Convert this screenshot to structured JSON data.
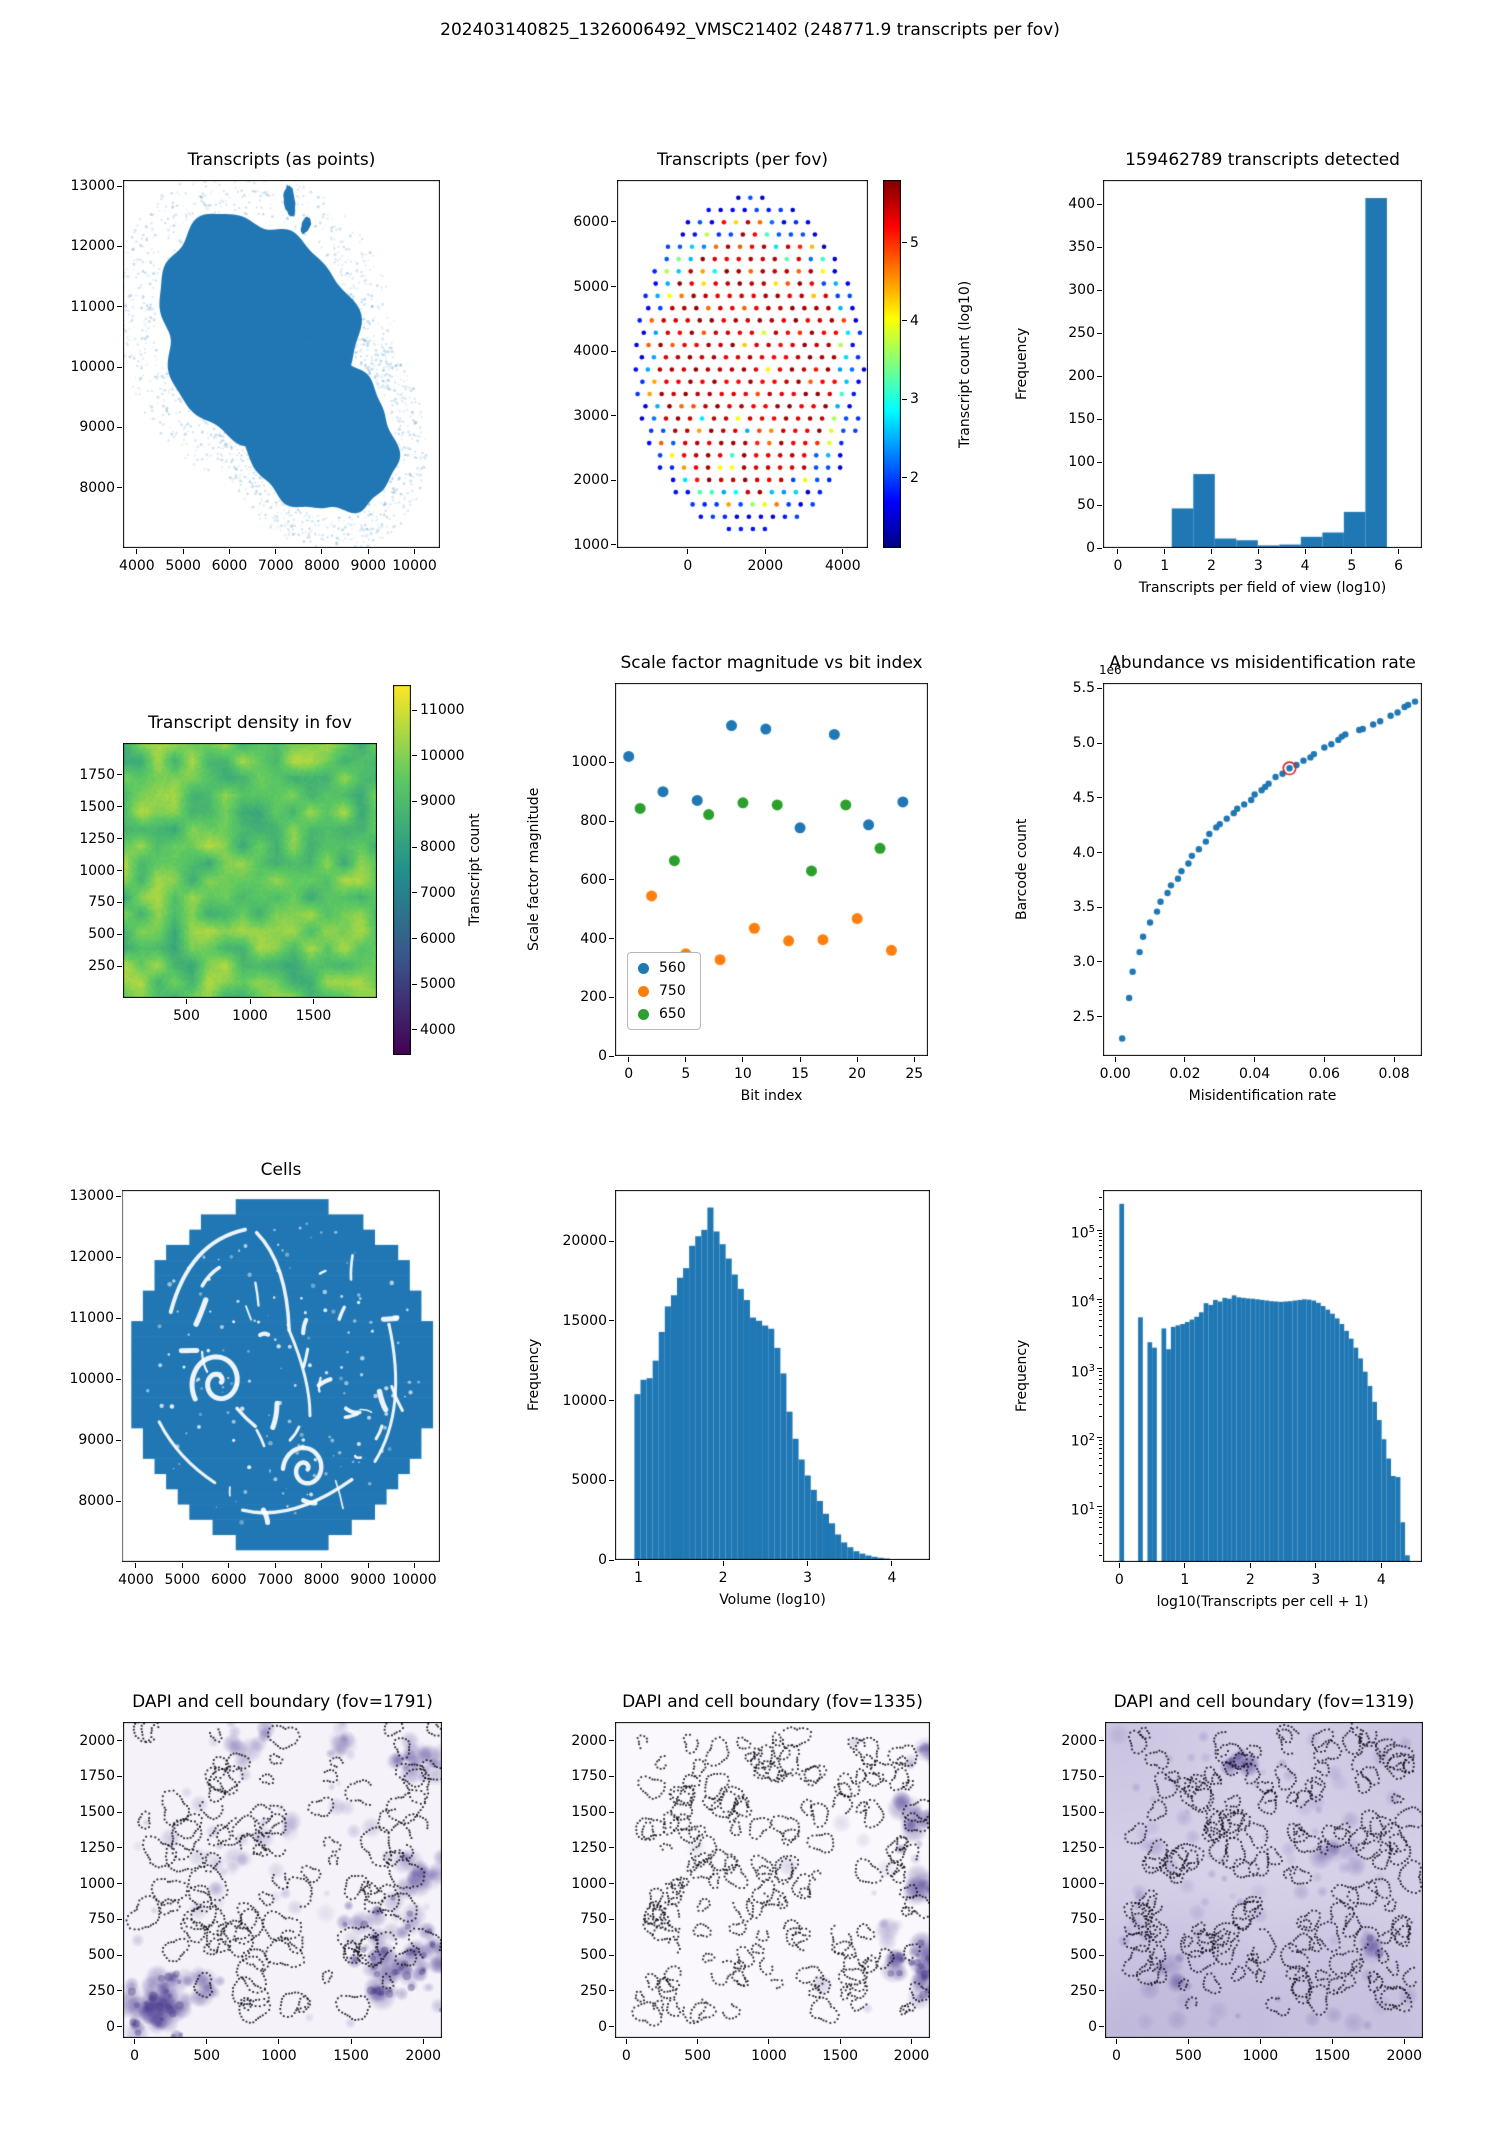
{
  "figure": {
    "title": "202403140825_1326006492_VMSC21402 (248771.9 transcripts per fov)",
    "background": "#ffffff",
    "accent_blue": "#1f77b4",
    "text_color": "#000000"
  },
  "chart_data": [
    {
      "id": "transcripts-as-points",
      "type": "tissue_scatter",
      "title": "Transcripts (as points)",
      "axes": {
        "l": 123,
        "t": 180,
        "r": 440,
        "b": 548
      },
      "xlim": [
        3700,
        10550
      ],
      "ylim": [
        7000,
        13100
      ],
      "xticks": [
        4000,
        5000,
        6000,
        7000,
        8000,
        9000,
        10000
      ],
      "yticks": [
        8000,
        9000,
        10000,
        11000,
        12000,
        13000
      ],
      "dot_color": "#2077b4",
      "halo_color": "#1f77b4",
      "seed": 7,
      "lobes": [
        {
          "cx": 6550,
          "cy": 10650,
          "rx": 2150,
          "ry": 1800,
          "rot": -20
        },
        {
          "cx": 7950,
          "cy": 8950,
          "rx": 1650,
          "ry": 1350,
          "rot": -25
        }
      ],
      "islets": [
        {
          "cx": 7300,
          "cy": 12750,
          "rx": 120,
          "ry": 260,
          "rot": 10
        },
        {
          "cx": 7650,
          "cy": 12350,
          "rx": 90,
          "ry": 150,
          "rot": -30
        }
      ]
    },
    {
      "id": "transcripts-per-fov",
      "type": "fov_dots",
      "title": "Transcripts (per fov)",
      "axes": {
        "l": 617,
        "t": 180,
        "r": 868,
        "b": 548
      },
      "xlim": [
        -1830,
        4650
      ],
      "ylim": [
        950,
        6650
      ],
      "xticks": [
        0,
        2000,
        4000
      ],
      "yticks": [
        1000,
        2000,
        3000,
        4000,
        5000,
        6000
      ],
      "grid": {
        "cx": 1560,
        "cy": 3800,
        "rx": 3060,
        "ry": 2650,
        "xstep": 310,
        "ystep": 190
      },
      "seed": 11,
      "colorbar": {
        "l": 883,
        "t": 180,
        "r": 901,
        "b": 548,
        "label": "Transcript count (log10)",
        "ticks": [
          2,
          3,
          4,
          5
        ],
        "vmin": 1.1,
        "vmax": 5.8,
        "cmap": "jet"
      }
    },
    {
      "id": "transcripts-detected-hist",
      "type": "histogram",
      "title": "159462789 transcripts detected",
      "xlabel": "Transcripts per field of view (log10)",
      "ylabel": "Frequency",
      "axes": {
        "l": 1103,
        "t": 180,
        "r": 1422,
        "b": 548
      },
      "xlim": [
        -0.32,
        6.5
      ],
      "ylim": [
        0,
        428
      ],
      "xticks": [
        0,
        1,
        2,
        3,
        4,
        5,
        6
      ],
      "yticks": [
        0,
        50,
        100,
        150,
        200,
        250,
        300,
        350,
        400
      ],
      "bins": {
        "start": 1.15,
        "width": 0.46,
        "values": [
          46,
          86,
          11,
          9,
          3,
          4,
          13,
          18,
          42,
          407
        ]
      },
      "color": "#1f77b4"
    },
    {
      "id": "transcript-density",
      "type": "heatmap",
      "title": "Transcript density in fov",
      "axes": {
        "l": 123,
        "t": 743,
        "r": 377,
        "b": 998
      },
      "xlim": [
        0,
        2000
      ],
      "ylim": [
        0,
        2000
      ],
      "xticks": [
        500,
        1000,
        1500
      ],
      "yticks": [
        250,
        500,
        750,
        1000,
        1250,
        1500,
        1750
      ],
      "value_range": [
        8300,
        10700
      ],
      "seed": 23,
      "colorbar": {
        "l": 393,
        "t": 685,
        "r": 411,
        "b": 1055,
        "label": "Transcript count",
        "ticks": [
          4000,
          5000,
          6000,
          7000,
          8000,
          9000,
          10000,
          11000
        ],
        "vmin": 3450,
        "vmax": 11550,
        "cmap": "viridis"
      }
    },
    {
      "id": "scale-factor",
      "type": "scatter_categories",
      "title": "Scale factor magnitude vs bit index",
      "xlabel": "Bit index",
      "ylabel": "Scale factor magnitude",
      "axes": {
        "l": 615,
        "t": 683,
        "r": 928,
        "b": 1056
      },
      "xlim": [
        -1.2,
        26.2
      ],
      "ylim": [
        0,
        1270
      ],
      "xticks": [
        0,
        5,
        10,
        15,
        20,
        25
      ],
      "yticks": [
        0,
        200,
        400,
        600,
        800,
        1000
      ],
      "series": [
        {
          "name": "560",
          "color": "#1f77b4",
          "points": [
            [
              0,
              1020
            ],
            [
              3,
              900
            ],
            [
              6,
              870
            ],
            [
              9,
              1125
            ],
            [
              12,
              1113
            ],
            [
              15,
              777
            ],
            [
              18,
              1095
            ],
            [
              21,
              787
            ],
            [
              24,
              865
            ]
          ]
        },
        {
          "name": "750",
          "color": "#ff7f0e",
          "points": [
            [
              2,
              545
            ],
            [
              5,
              348
            ],
            [
              8,
              328
            ],
            [
              11,
              435
            ],
            [
              14,
              392
            ],
            [
              17,
              396
            ],
            [
              20,
              468
            ],
            [
              23,
              360
            ]
          ]
        },
        {
          "name": "650",
          "color": "#2ca02c",
          "points": [
            [
              1,
              843
            ],
            [
              4,
              665
            ],
            [
              7,
              822
            ],
            [
              10,
              862
            ],
            [
              13,
              855
            ],
            [
              16,
              630
            ],
            [
              19,
              855
            ],
            [
              22,
              707
            ]
          ]
        }
      ],
      "legend_position": "lower left"
    },
    {
      "id": "abundance-misid",
      "type": "scatter_curve",
      "title": "Abundance vs misidentification rate",
      "xlabel": "Misidentification rate",
      "ylabel": "Barcode count",
      "offset_text": "1e6",
      "axes": {
        "l": 1103,
        "t": 683,
        "r": 1422,
        "b": 1056
      },
      "xlim": [
        -0.0035,
        0.088
      ],
      "ylim": [
        2.14,
        5.55
      ],
      "xticks": [
        0,
        0.02,
        0.04,
        0.06,
        0.08
      ],
      "xtick_labels": [
        "0.00",
        "0.02",
        "0.04",
        "0.06",
        "0.08"
      ],
      "yticks": [
        2.5,
        3,
        3.5,
        4,
        4.5,
        5,
        5.5
      ],
      "ytick_labels": [
        "2.5",
        "3.0",
        "3.5",
        "4.0",
        "4.5",
        "5.0",
        "5.5"
      ],
      "color": "#1f77b4",
      "points": [
        [
          0.002,
          2.3
        ],
        [
          0.004,
          2.67
        ],
        [
          0.005,
          2.91
        ],
        [
          0.007,
          3.09
        ],
        [
          0.008,
          3.23
        ],
        [
          0.01,
          3.36
        ],
        [
          0.012,
          3.46
        ],
        [
          0.013,
          3.55
        ],
        [
          0.015,
          3.63
        ],
        [
          0.016,
          3.7
        ],
        [
          0.018,
          3.76
        ],
        [
          0.019,
          3.83
        ],
        [
          0.021,
          3.9
        ],
        [
          0.022,
          3.97
        ],
        [
          0.024,
          4.03
        ],
        [
          0.026,
          4.1
        ],
        [
          0.027,
          4.17
        ],
        [
          0.029,
          4.23
        ],
        [
          0.03,
          4.26
        ],
        [
          0.032,
          4.31
        ],
        [
          0.034,
          4.36
        ],
        [
          0.035,
          4.4
        ],
        [
          0.037,
          4.44
        ],
        [
          0.039,
          4.48
        ],
        [
          0.04,
          4.53
        ],
        [
          0.042,
          4.57
        ],
        [
          0.043,
          4.6
        ],
        [
          0.044,
          4.63
        ],
        [
          0.046,
          4.69
        ],
        [
          0.048,
          4.72
        ],
        [
          0.05,
          4.77
        ],
        [
          0.052,
          4.8
        ],
        [
          0.054,
          4.84
        ],
        [
          0.056,
          4.87
        ],
        [
          0.057,
          4.9
        ],
        [
          0.06,
          4.96
        ],
        [
          0.062,
          4.99
        ],
        [
          0.064,
          5.03
        ],
        [
          0.065,
          5.06
        ],
        [
          0.066,
          5.08
        ],
        [
          0.07,
          5.12
        ],
        [
          0.071,
          5.13
        ],
        [
          0.074,
          5.17
        ],
        [
          0.076,
          5.2
        ],
        [
          0.079,
          5.25
        ],
        [
          0.081,
          5.28
        ],
        [
          0.083,
          5.33
        ],
        [
          0.084,
          5.35
        ],
        [
          0.086,
          5.38
        ]
      ],
      "highlight_index": 30,
      "highlight_color": "#d62728"
    },
    {
      "id": "cells",
      "type": "cells_blob",
      "title": "Cells",
      "axes": {
        "l": 122,
        "t": 1190,
        "r": 440,
        "b": 1562
      },
      "xlim": [
        3700,
        10550
      ],
      "ylim": [
        7000,
        13100
      ],
      "xticks": [
        4000,
        5000,
        6000,
        7000,
        8000,
        9000,
        10000
      ],
      "yticks": [
        8000,
        9000,
        10000,
        11000,
        12000,
        13000
      ],
      "color": "#2077b4",
      "seed": 31,
      "ellipse": {
        "cx": 7150,
        "cy": 10100,
        "rx": 3280,
        "ry": 2900
      },
      "step": 250
    },
    {
      "id": "volume-hist",
      "type": "histogram",
      "title": "",
      "xlabel": "Volume (log10)",
      "ylabel": "Frequency",
      "axes": {
        "l": 615,
        "t": 1190,
        "r": 930,
        "b": 1560
      },
      "xlim": [
        0.72,
        4.45
      ],
      "ylim": [
        0,
        23200
      ],
      "xticks": [
        1,
        2,
        3,
        4
      ],
      "yticks": [
        0,
        5000,
        10000,
        15000,
        20000
      ],
      "bins": {
        "start": 0.95,
        "width": 0.072,
        "values": [
          10400,
          11300,
          11400,
          12500,
          14300,
          15900,
          16600,
          17700,
          18300,
          19700,
          20300,
          20700,
          22100,
          20600,
          19800,
          18900,
          17900,
          17000,
          16300,
          15200,
          15000,
          14700,
          14500,
          13300,
          11700,
          9300,
          7600,
          6300,
          5300,
          4400,
          3700,
          2900,
          2300,
          1600,
          1100,
          800,
          550,
          400,
          280,
          200,
          140,
          95,
          60,
          40,
          28,
          18,
          12,
          8
        ]
      },
      "color": "#1f77b4"
    },
    {
      "id": "transcripts-per-cell-hist",
      "type": "histogram",
      "title": "",
      "xlabel": "log10(Transcripts per cell + 1)",
      "ylabel": "Frequency",
      "axes": {
        "l": 1103,
        "t": 1190,
        "r": 1422,
        "b": 1562
      },
      "xlim": [
        -0.25,
        4.62
      ],
      "ylog": true,
      "ylim": [
        1.6,
        380000
      ],
      "xticks": [
        0,
        1,
        2,
        3,
        4
      ],
      "yticks_log": [
        1,
        2,
        3,
        4,
        5
      ],
      "bins": {
        "start": 0,
        "width": 0.0715,
        "values": [
          240000,
          0,
          0,
          0,
          5500,
          0,
          2400,
          2000,
          0,
          3800,
          1900,
          4000,
          4200,
          4400,
          4700,
          5100,
          5600,
          6500,
          8800,
          8300,
          9800,
          9300,
          10500,
          10200,
          11400,
          10700,
          10500,
          10300,
          10200,
          10000,
          9800,
          9600,
          9400,
          9300,
          9200,
          9300,
          9400,
          9600,
          9800,
          10000,
          9900,
          9600,
          8900,
          8000,
          7100,
          6200,
          5300,
          4400,
          3500,
          2700,
          2000,
          1400,
          900,
          560,
          330,
          180,
          95,
          50,
          28,
          27,
          6,
          2
        ]
      },
      "color": "#1f77b4"
    },
    {
      "id": "dapi-fov-1791",
      "type": "dapi",
      "title": "DAPI and cell boundary (fov=1791)",
      "axes": {
        "l": 123,
        "t": 1722,
        "r": 442,
        "b": 2038
      },
      "xlim": [
        -80,
        2130
      ],
      "ylim": [
        -80,
        2130
      ],
      "xticks": [
        0,
        500,
        1000,
        1500,
        2000
      ],
      "yticks": [
        0,
        250,
        500,
        750,
        1000,
        1250,
        1500,
        1750,
        2000
      ],
      "bg": "#f5f2f9",
      "blob_color": "#5b4b9b",
      "seed": 41,
      "zones": [
        {
          "x": 120,
          "y": 140,
          "r": 280,
          "n": 48,
          "a": 0.5
        },
        {
          "x": 430,
          "y": 300,
          "r": 180,
          "n": 14,
          "a": 0.32
        },
        {
          "x": 1780,
          "y": 480,
          "r": 400,
          "n": 50,
          "a": 0.42
        },
        {
          "x": 2020,
          "y": 1050,
          "r": 200,
          "n": 14,
          "a": 0.35
        },
        {
          "x": 1960,
          "y": 1850,
          "r": 260,
          "n": 20,
          "a": 0.38
        },
        {
          "x": 760,
          "y": 1960,
          "r": 170,
          "n": 9,
          "a": 0.35
        },
        {
          "x": 1450,
          "y": 1980,
          "r": 170,
          "n": 9,
          "a": 0.3
        },
        {
          "x": 600,
          "y": 1150,
          "r": 280,
          "n": 10,
          "a": 0.22
        },
        {
          "x": 950,
          "y": 1350,
          "r": 240,
          "n": 8,
          "a": 0.2
        }
      ],
      "uniform_blobs": 38,
      "contours": 92,
      "cell_r": [
        35,
        115
      ],
      "cmargin": [
        40,
        2090
      ],
      "avoid": [
        330,
        330
      ]
    },
    {
      "id": "dapi-fov-1335",
      "type": "dapi",
      "title": "DAPI and cell boundary (fov=1335)",
      "axes": {
        "l": 615,
        "t": 1722,
        "r": 930,
        "b": 2038
      },
      "xlim": [
        -80,
        2130
      ],
      "ylim": [
        -80,
        2130
      ],
      "xticks": [
        0,
        500,
        1000,
        1500,
        2000
      ],
      "yticks": [
        0,
        250,
        500,
        750,
        1000,
        1250,
        1500,
        1750,
        2000
      ],
      "bg": "#faf8fc",
      "blob_color": "#5b4b9b",
      "seed": 43,
      "zones": [
        {
          "x": 2060,
          "y": 380,
          "r": 260,
          "n": 30,
          "a": 0.45
        },
        {
          "x": 2080,
          "y": 950,
          "r": 150,
          "n": 9,
          "a": 0.35
        },
        {
          "x": 2060,
          "y": 1380,
          "r": 230,
          "n": 20,
          "a": 0.4
        },
        {
          "x": 2090,
          "y": 1880,
          "r": 150,
          "n": 9,
          "a": 0.35
        },
        {
          "x": 1820,
          "y": 700,
          "r": 120,
          "n": 5,
          "a": 0.22
        }
      ],
      "uniform_blobs": 10,
      "contours": 150,
      "cell_r": [
        28,
        85
      ],
      "cmargin": [
        90,
        2060
      ]
    },
    {
      "id": "dapi-fov-1319",
      "type": "dapi",
      "title": "DAPI and cell boundary (fov=1319)",
      "axes": {
        "l": 1105,
        "t": 1722,
        "r": 1423,
        "b": 2038
      },
      "xlim": [
        -80,
        2130
      ],
      "ylim": [
        -80,
        2130
      ],
      "xticks": [
        0,
        500,
        1000,
        1500,
        2000
      ],
      "yticks": [
        0,
        250,
        500,
        750,
        1000,
        1250,
        1500,
        1750,
        2000
      ],
      "bg": "#d9d3ea",
      "blob_color": "#5b4b9b",
      "seed": 47,
      "vignette": true,
      "zones": [
        {
          "x": 870,
          "y": 1850,
          "r": 110,
          "n": 5,
          "a": 0.55
        },
        {
          "x": 1800,
          "y": 560,
          "r": 90,
          "n": 4,
          "a": 0.5
        },
        {
          "x": 430,
          "y": 400,
          "r": 140,
          "n": 6,
          "a": 0.35
        },
        {
          "x": 1500,
          "y": 1250,
          "r": 120,
          "n": 5,
          "a": 0.3
        }
      ],
      "uniform_blobs": 85,
      "contours": 150,
      "cell_r": [
        30,
        95
      ],
      "cmargin": [
        140,
        2050
      ]
    }
  ]
}
